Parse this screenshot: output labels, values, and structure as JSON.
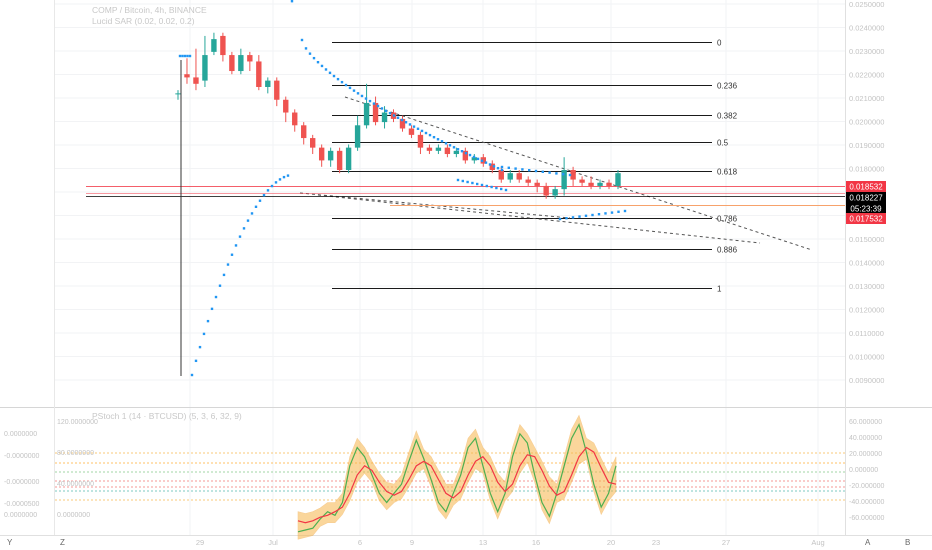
{
  "colors": {
    "up": "#26a69a",
    "down": "#ef5350",
    "sar": "#2196f3",
    "fib": "#1a1a1a",
    "grid": "#f2f3f5",
    "axis_text": "#c3c3c3",
    "last_price_bg": "#000000",
    "red_tag": "#f23645",
    "osc_fill": "#f7b54a",
    "osc_green": "#4caf50",
    "osc_red": "#f23645"
  },
  "legend": {
    "symbol_line": "COMP / Bitcoin, 4h, BINANCE",
    "sar_line": "Lucid SAR (0.02, 0.02, 0.2)",
    "osc_line": "PStoch 1 (14 · BTCUSD) (5, 3, 6, 32, 9)"
  },
  "price_axis": {
    "labels": [
      "0.0250000",
      "0.0240000",
      "0.0230000",
      "0.0220000",
      "0.0210000",
      "0.0200000",
      "0.0190000",
      "0.0180000",
      "0.0170000",
      "0.0160000",
      "0.0150000",
      "0.0140000",
      "0.0130000",
      "0.0120000",
      "0.0110000",
      "0.0100000",
      "0.0090000"
    ],
    "tags": {
      "red_upper": "0.018532",
      "last_price": "0.018227",
      "countdown": "05:23:39",
      "red_lower": "0.017532"
    }
  },
  "fib_levels": [
    "0",
    "0.236",
    "0.382",
    "0.5",
    "0.618",
    "0.786",
    "0.886",
    "1"
  ],
  "time_axis": {
    "labels": [
      "Jul",
      "6",
      "9",
      "13",
      "16",
      "20",
      "23",
      "27",
      "Aug"
    ],
    "first_label": "29"
  },
  "bottom_bar": {
    "y_button": "Y",
    "z_button": "Z",
    "a_button": "A",
    "b_button": "B"
  },
  "osc_left_axis": [
    "0.0000000",
    "-0.0000000",
    "-0.0000000",
    "-0.0000500",
    "0.0000000"
  ],
  "osc_mid_axis": [
    "120.0000000",
    "80.0000000",
    "40.0000000",
    "0.0000000"
  ],
  "osc_right_axis": [
    "60.000000",
    "40.000000",
    "20.000000",
    "0.000000",
    "-20.000000",
    "-40.000000",
    "-60.000000"
  ],
  "chart_data": [
    {
      "type": "candlestick",
      "title": "COMP / Bitcoin, 4h, BINANCE",
      "ylim": [
        0.011,
        0.0235
      ],
      "x_labels": [
        "29",
        "Jul",
        "6",
        "9",
        "13",
        "16",
        "20",
        "23",
        "27",
        "Aug"
      ],
      "candles_approx": [
        [
          0.0207,
          0.0207,
          0.0205,
          0.0208
        ],
        [
          0.0213,
          0.0212,
          0.021,
          0.0218
        ],
        [
          0.0212,
          0.021,
          0.0208,
          0.0221
        ],
        [
          0.0211,
          0.0219,
          0.0209,
          0.0225
        ],
        [
          0.022,
          0.0224,
          0.0219,
          0.0226
        ],
        [
          0.0225,
          0.0219,
          0.0217,
          0.0226
        ],
        [
          0.0219,
          0.0214,
          0.0213,
          0.022
        ],
        [
          0.0214,
          0.0219,
          0.0213,
          0.0221
        ],
        [
          0.0219,
          0.0217,
          0.0214,
          0.022
        ],
        [
          0.0217,
          0.0209,
          0.0208,
          0.0219
        ],
        [
          0.0209,
          0.0211,
          0.0207,
          0.0212
        ],
        [
          0.0211,
          0.0205,
          0.0203,
          0.0212
        ],
        [
          0.0205,
          0.0201,
          0.0198,
          0.0206
        ],
        [
          0.0201,
          0.0197,
          0.0195,
          0.0202
        ],
        [
          0.0197,
          0.0193,
          0.0191,
          0.0198
        ],
        [
          0.0193,
          0.019,
          0.0188,
          0.0194
        ],
        [
          0.019,
          0.0186,
          0.0184,
          0.0191
        ],
        [
          0.0186,
          0.0189,
          0.0184,
          0.019
        ],
        [
          0.0189,
          0.0183,
          0.0182,
          0.019
        ],
        [
          0.0183,
          0.019,
          0.0182,
          0.0191
        ],
        [
          0.019,
          0.0197,
          0.0189,
          0.02
        ],
        [
          0.0197,
          0.0204,
          0.0196,
          0.021
        ],
        [
          0.0204,
          0.0198,
          0.0197,
          0.0206
        ],
        [
          0.0198,
          0.0201,
          0.0196,
          0.0203
        ],
        [
          0.0201,
          0.0199,
          0.0198,
          0.0202
        ],
        [
          0.0199,
          0.0196,
          0.0195,
          0.02
        ],
        [
          0.0196,
          0.0194,
          0.0193,
          0.0197
        ],
        [
          0.0194,
          0.019,
          0.0188,
          0.0195
        ],
        [
          0.019,
          0.0189,
          0.0188,
          0.0191
        ],
        [
          0.0189,
          0.019,
          0.0188,
          0.0191
        ],
        [
          0.019,
          0.0188,
          0.0187,
          0.0191
        ],
        [
          0.0188,
          0.0189,
          0.0187,
          0.019
        ],
        [
          0.0189,
          0.0186,
          0.0185,
          0.019
        ],
        [
          0.0186,
          0.0187,
          0.0185,
          0.0188
        ],
        [
          0.0187,
          0.0185,
          0.0184,
          0.0188
        ],
        [
          0.0185,
          0.0183,
          0.0182,
          0.0186
        ],
        [
          0.0183,
          0.018,
          0.0179,
          0.0184
        ],
        [
          0.018,
          0.0182,
          0.0179,
          0.0183
        ],
        [
          0.0182,
          0.018,
          0.0179,
          0.0183
        ],
        [
          0.018,
          0.0179,
          0.0178,
          0.0181
        ],
        [
          0.0179,
          0.0178,
          0.0176,
          0.018
        ],
        [
          0.0178,
          0.0175,
          0.0174,
          0.0179
        ],
        [
          0.0175,
          0.0177,
          0.0174,
          0.0178
        ],
        [
          0.0177,
          0.0183,
          0.0175,
          0.0187
        ],
        [
          0.0183,
          0.018,
          0.0178,
          0.0184
        ],
        [
          0.018,
          0.0179,
          0.0178,
          0.0181
        ],
        [
          0.0179,
          0.0178,
          0.0177,
          0.0181
        ],
        [
          0.0178,
          0.0179,
          0.0177,
          0.018
        ],
        [
          0.0179,
          0.0178,
          0.0177,
          0.018
        ],
        [
          0.0178,
          0.0182,
          0.0177,
          0.0183
        ]
      ],
      "fib_levels": [
        "0",
        "0.236",
        "0.382",
        "0.5",
        "0.618",
        "0.786",
        "0.886",
        "1"
      ],
      "last_price": "0.018227",
      "horizontal_lines": [
        "0.018532",
        "0.017532"
      ],
      "grid": true
    },
    {
      "type": "line",
      "title": "PStoch 1 (14 · BTCUSD) (5, 3, 6, 32, 9)",
      "ylim": [
        -60,
        60
      ],
      "series": [
        {
          "values": [
            -62,
            -60,
            -58,
            -48,
            -40,
            -44,
            -30,
            10,
            30,
            20,
            0,
            -20,
            -30,
            -20,
            -10,
            15,
            38,
            18,
            -5,
            -30,
            -40,
            -20,
            0,
            30,
            40,
            10,
            -20,
            -40,
            -20,
            20,
            45,
            35,
            0,
            -30,
            -45,
            -20,
            10,
            40,
            55,
            25,
            -10,
            -35,
            -20,
            10
          ]
        },
        {
          "values": [
            -50,
            -52,
            -50,
            -46,
            -44,
            -40,
            -35,
            -20,
            0,
            10,
            5,
            -8,
            -18,
            -22,
            -18,
            -5,
            10,
            15,
            10,
            -5,
            -20,
            -25,
            -18,
            0,
            15,
            20,
            10,
            -8,
            -18,
            -10,
            10,
            22,
            20,
            5,
            -12,
            -22,
            -18,
            0,
            20,
            30,
            25,
            8,
            -8,
            -10
          ]
        }
      ]
    }
  ]
}
